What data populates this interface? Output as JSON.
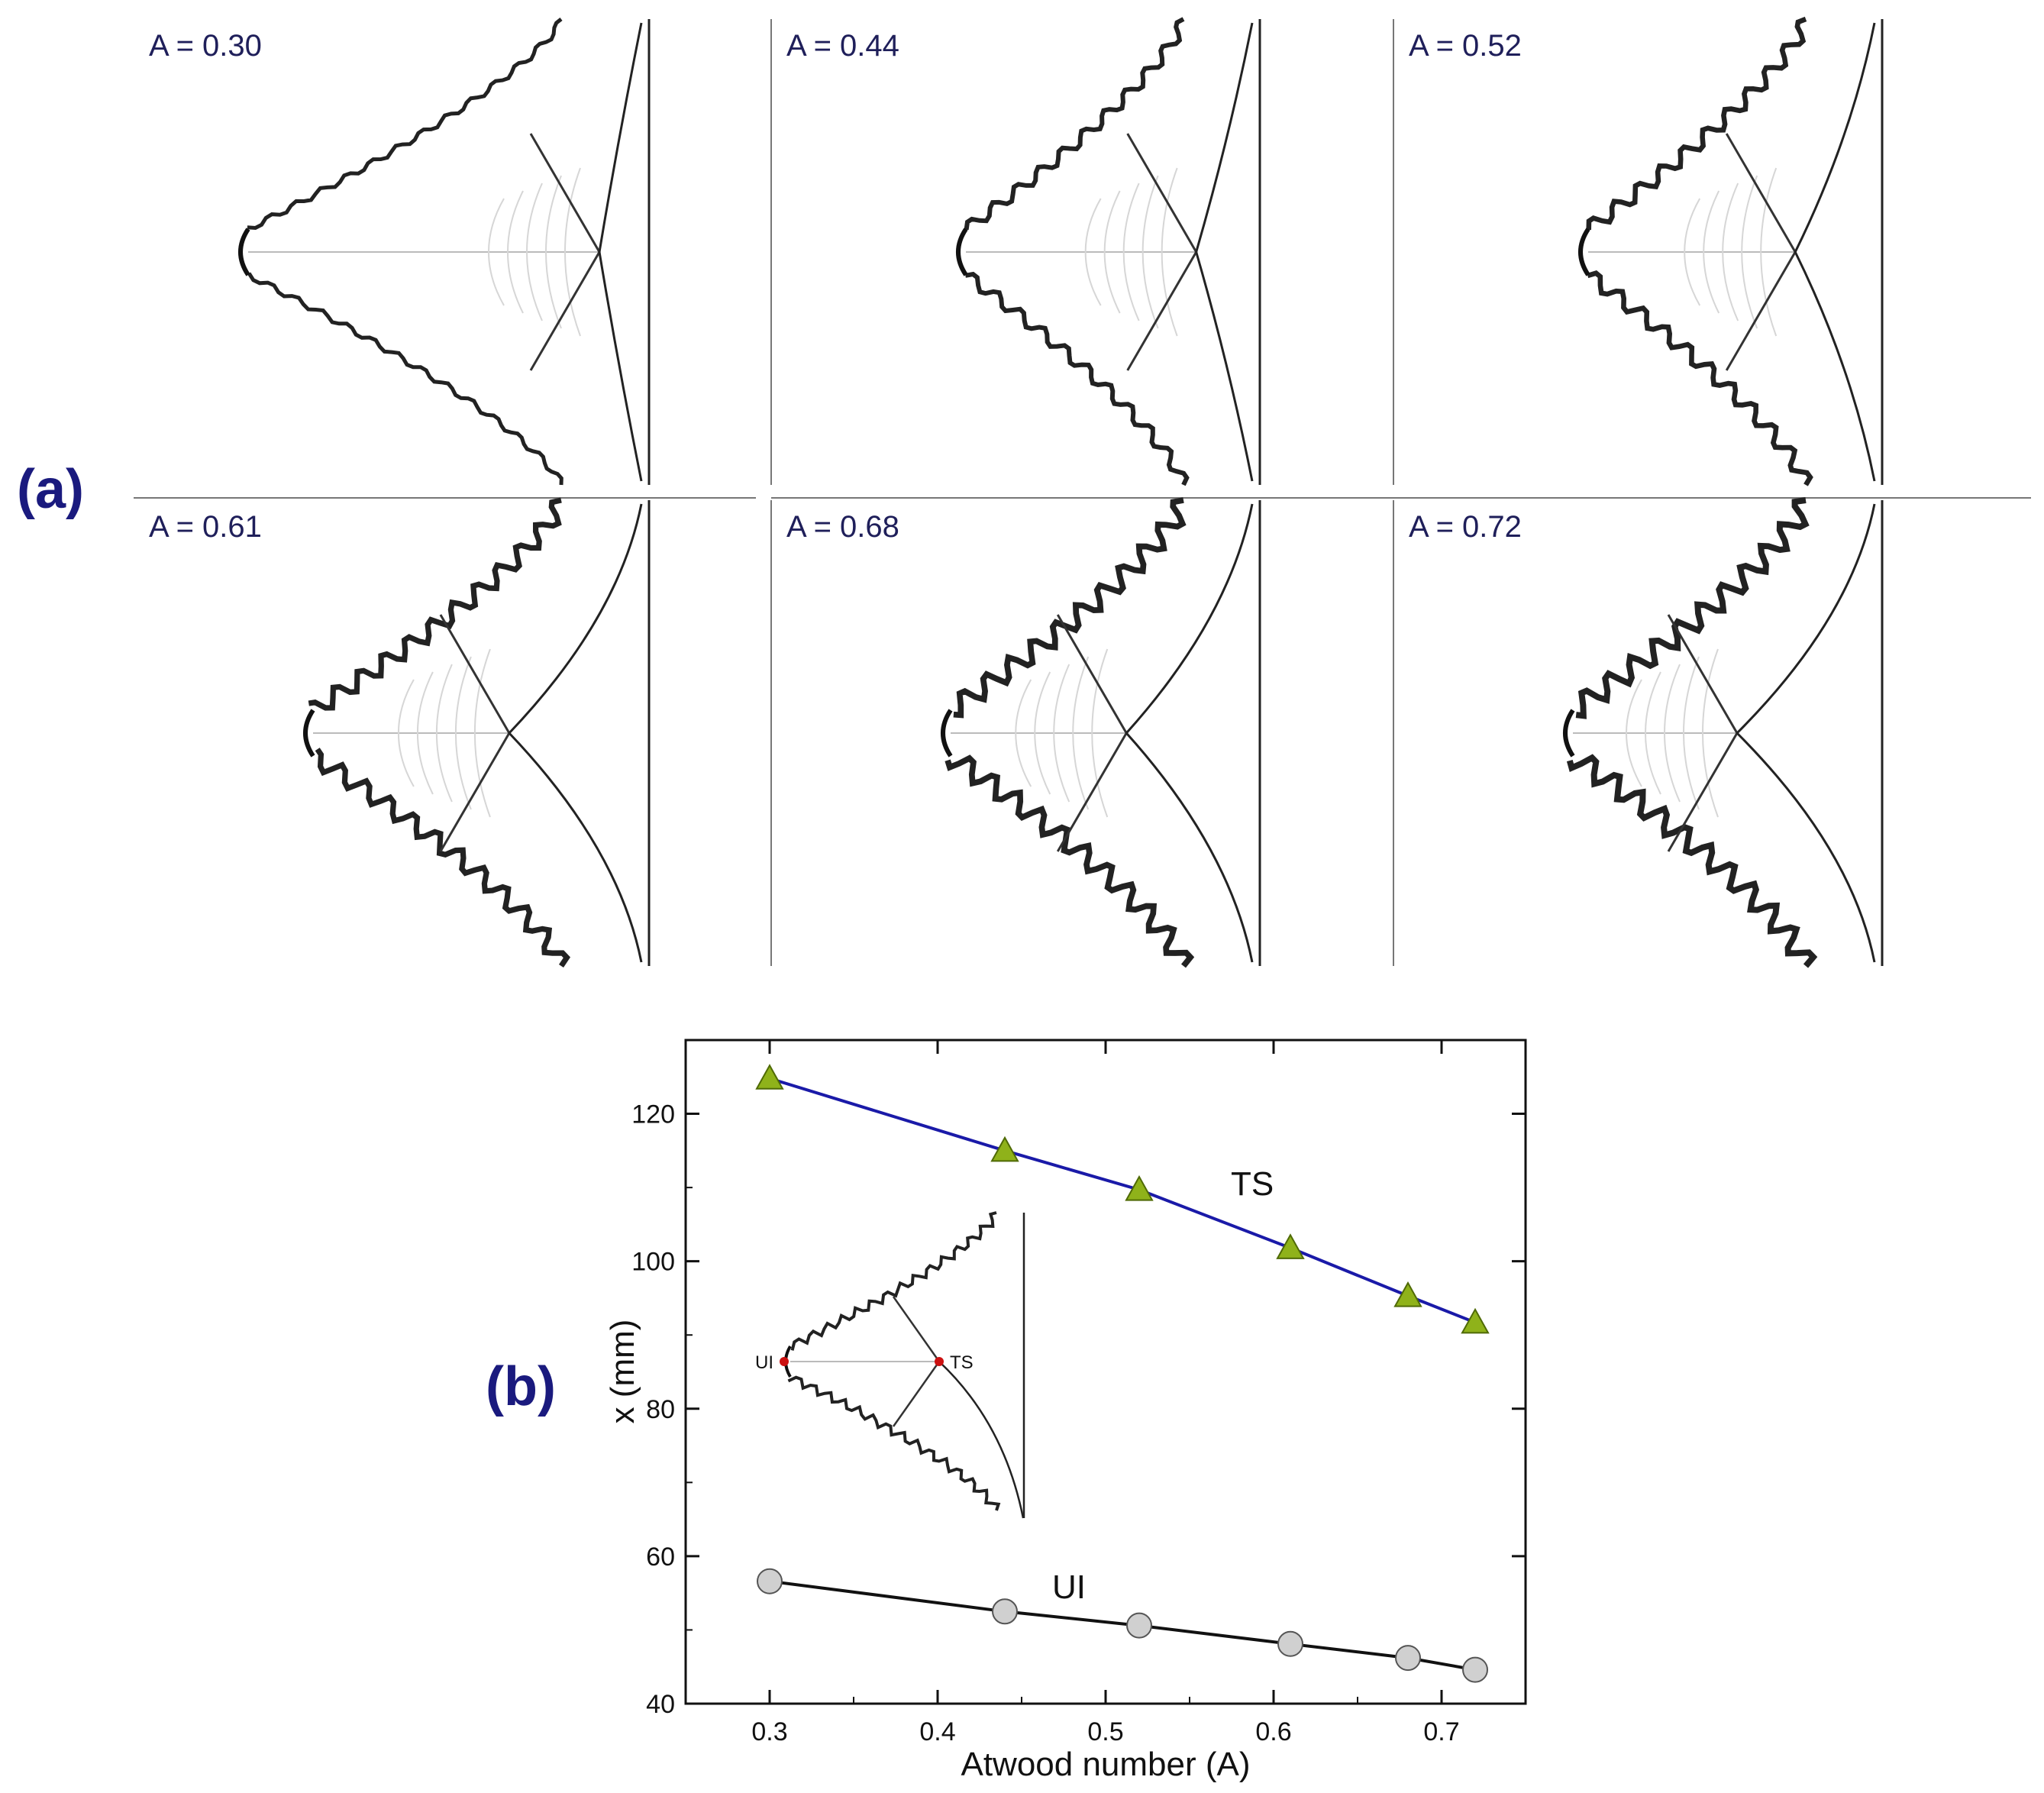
{
  "panel_a": {
    "label": "(a)",
    "panels": [
      {
        "label": "A = 0.30",
        "atwood": 0.3
      },
      {
        "label": "A = 0.44",
        "atwood": 0.44
      },
      {
        "label": "A = 0.52",
        "atwood": 0.52
      },
      {
        "label": "A = 0.61",
        "atwood": 0.61
      },
      {
        "label": "A = 0.68",
        "atwood": 0.68
      },
      {
        "label": "A = 0.72",
        "atwood": 0.72
      }
    ]
  },
  "panel_b": {
    "label": "(b)",
    "inset": {
      "ui_label": "UI",
      "ts_label": "TS"
    }
  },
  "colors": {
    "ts_line": "#1a1aa8",
    "ts_marker": "#8fb21a",
    "ui_line": "#111111",
    "ui_marker": "#d0d0d0",
    "label": "#1a1a7e"
  },
  "chart_data": {
    "type": "line",
    "xlabel": "Atwood number (A)",
    "ylabel": "x (mm)",
    "xlim": [
      0.25,
      0.75
    ],
    "ylim": [
      40,
      130
    ],
    "xticks": [
      "0.3",
      "0.4",
      "0.5",
      "0.6",
      "0.7"
    ],
    "yticks": [
      "40",
      "60",
      "80",
      "100",
      "120"
    ],
    "grid": false,
    "series": [
      {
        "name": "TS",
        "marker": "triangle",
        "x": [
          0.3,
          0.44,
          0.52,
          0.61,
          0.68,
          0.72
        ],
        "y": [
          124.8,
          115.0,
          109.7,
          101.8,
          95.3,
          91.7
        ]
      },
      {
        "name": "UI",
        "marker": "circle",
        "x": [
          0.3,
          0.44,
          0.52,
          0.61,
          0.68,
          0.72
        ],
        "y": [
          56.6,
          52.5,
          50.6,
          48.1,
          46.2,
          44.6
        ]
      }
    ]
  }
}
